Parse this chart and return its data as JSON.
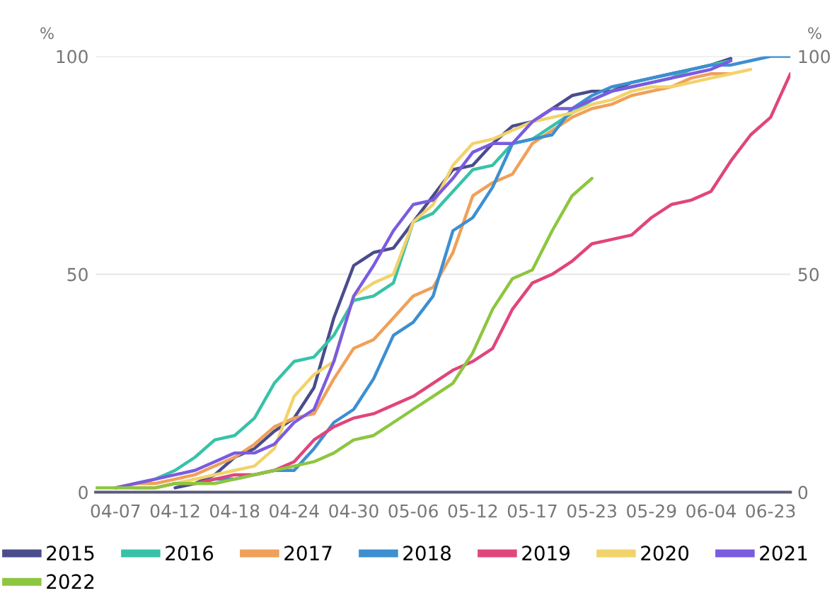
{
  "chart_data": {
    "type": "line",
    "categories": [
      null,
      "04-07",
      null,
      null,
      "04-12",
      null,
      null,
      "04-18",
      null,
      null,
      "04-24",
      null,
      null,
      "04-30",
      null,
      null,
      "05-06",
      null,
      null,
      "05-12",
      null,
      null,
      "05-17",
      null,
      null,
      "05-23",
      null,
      null,
      "05-29",
      null,
      null,
      "06-04",
      null,
      null,
      "06-23",
      null
    ],
    "ylabel": "%",
    "y2label": "%",
    "ylim": [
      0,
      100
    ],
    "yticks": [
      0,
      50,
      100
    ],
    "y2lim": [
      0,
      100
    ],
    "y2ticks": [
      0,
      50,
      100
    ],
    "grid": "y",
    "legend": "bottom",
    "marker": "none",
    "line_style": "solid",
    "series": [
      {
        "name": "2015",
        "color": "#4a4c8c",
        "values": [
          null,
          null,
          null,
          null,
          1,
          2,
          4,
          8,
          10,
          14,
          17,
          24,
          40,
          52,
          55,
          56,
          62,
          68,
          74,
          75,
          80,
          84,
          85,
          88,
          91,
          92,
          92,
          94,
          95,
          96,
          97,
          98,
          99.5,
          null,
          null,
          null
        ]
      },
      {
        "name": "2016",
        "color": "#37c2a8",
        "values": [
          null,
          null,
          2,
          3,
          5,
          8,
          12,
          13,
          17,
          25,
          30,
          31,
          36,
          44,
          45,
          48,
          62,
          64,
          69,
          74,
          75,
          80,
          81,
          84,
          87,
          90,
          92,
          93,
          94,
          95,
          97,
          98,
          99,
          null,
          null,
          null
        ]
      },
      {
        "name": "2017",
        "color": "#f0a05a",
        "values": [
          null,
          1,
          2,
          2,
          3,
          4,
          6,
          8,
          11,
          15,
          17,
          18,
          26,
          33,
          35,
          40,
          45,
          47,
          55,
          68,
          71,
          73,
          80,
          83,
          86,
          88,
          89,
          91,
          92,
          93,
          95,
          96,
          96,
          null,
          null,
          null
        ]
      },
      {
        "name": "2018",
        "color": "#3d8fd1",
        "values": [
          null,
          null,
          null,
          null,
          null,
          2,
          3,
          3,
          4,
          5,
          5,
          10,
          16,
          19,
          26,
          36,
          39,
          45,
          60,
          63,
          70,
          80,
          81,
          82,
          88,
          91,
          93,
          94,
          95,
          96,
          97,
          98,
          98,
          99,
          100,
          100
        ]
      },
      {
        "name": "2019",
        "color": "#e0457b",
        "values": [
          null,
          null,
          1,
          1,
          2,
          2,
          3,
          4,
          4,
          5,
          7,
          12,
          15,
          17,
          18,
          20,
          22,
          25,
          28,
          30,
          33,
          42,
          48,
          50,
          53,
          57,
          58,
          59,
          63,
          66,
          67,
          69,
          76,
          82,
          86,
          96
        ]
      },
      {
        "name": "2020",
        "color": "#f2d36b",
        "values": [
          null,
          1,
          1,
          1,
          2,
          3,
          4,
          5,
          6,
          10,
          22,
          27,
          30,
          45,
          48,
          50,
          62,
          66,
          75,
          80,
          81,
          83,
          85,
          86,
          87,
          89,
          90,
          92,
          93,
          93,
          94,
          95,
          96,
          97,
          null,
          null
        ]
      },
      {
        "name": "2021",
        "color": "#7b5be0",
        "values": [
          null,
          1,
          2,
          3,
          4,
          5,
          7,
          9,
          9,
          11,
          16,
          19,
          30,
          45,
          52,
          60,
          66,
          67,
          72,
          78,
          80,
          80,
          85,
          88,
          88,
          90,
          92,
          93,
          94,
          95,
          96,
          97,
          99,
          null,
          null,
          null
        ]
      },
      {
        "name": "2022",
        "color": "#8dc63f",
        "values": [
          1,
          1,
          1,
          1,
          2,
          2,
          2,
          3,
          4,
          5,
          6,
          7,
          9,
          12,
          13,
          16,
          19,
          22,
          25,
          32,
          42,
          49,
          51,
          60,
          68,
          72,
          null,
          null,
          null,
          null,
          null,
          null,
          null,
          null,
          null,
          null
        ]
      }
    ]
  }
}
